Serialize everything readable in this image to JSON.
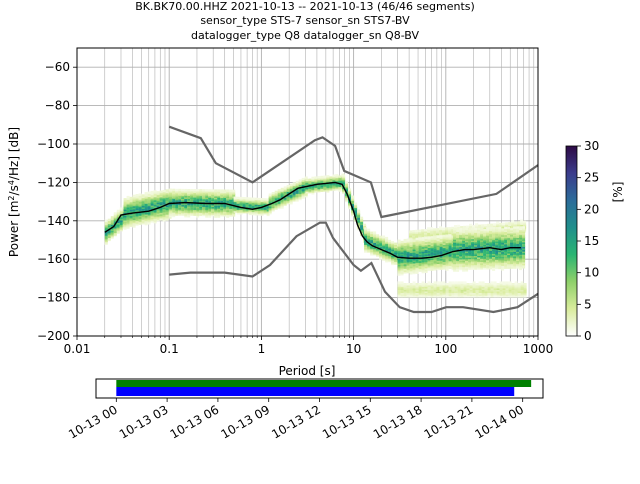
{
  "title": {
    "line1": "BK.BK70.00.HHZ   2021-10-13 -- 2021-10-13  (46/46 segments)",
    "line2": "sensor_type STS-7 sensor_sn STS7-BV",
    "line3": "datalogger_type Q8 datalogger_sn Q8-BV"
  },
  "chart_data": [
    {
      "type": "heatmap",
      "xscale": "log",
      "xlim": [
        0.01,
        1000
      ],
      "ylim": [
        -200,
        -50
      ],
      "xlabel": "Period [s]",
      "ylabel": "Power [m²/s⁴/Hz] [dB]",
      "x_ticks": [
        {
          "value": 0.01,
          "label": "0.01"
        },
        {
          "value": 0.1,
          "label": "0.1"
        },
        {
          "value": 1,
          "label": "1"
        },
        {
          "value": 10,
          "label": "10"
        },
        {
          "value": 100,
          "label": "100"
        },
        {
          "value": 1000,
          "label": "1000"
        }
      ],
      "y_ticks": [
        {
          "value": -60,
          "label": "−60"
        },
        {
          "value": -80,
          "label": "−80"
        },
        {
          "value": -100,
          "label": "−100"
        },
        {
          "value": -120,
          "label": "−120"
        },
        {
          "value": -140,
          "label": "−140"
        },
        {
          "value": -160,
          "label": "−160"
        },
        {
          "value": -180,
          "label": "−180"
        },
        {
          "value": -200,
          "label": "−200"
        }
      ],
      "grid": true,
      "colorbar": {
        "label": "[%]",
        "range": [
          0,
          30
        ],
        "ticks": [
          {
            "value": 0,
            "label": "0"
          },
          {
            "value": 5,
            "label": "5"
          },
          {
            "value": 10,
            "label": "10"
          },
          {
            "value": 15,
            "label": "15"
          },
          {
            "value": 20,
            "label": "20"
          },
          {
            "value": 25,
            "label": "25"
          },
          {
            "value": 30,
            "label": "30"
          }
        ],
        "colors": [
          "#ffffff",
          "#d9ec9c",
          "#8fd06a",
          "#2ab572",
          "#208f8c",
          "#2c6c9a",
          "#3b3c8c",
          "#2d0a45"
        ]
      },
      "noise_model_color": "#666666",
      "high_noise_model": [
        [
          0.1,
          -91
        ],
        [
          0.22,
          -97
        ],
        [
          0.32,
          -110
        ],
        [
          0.8,
          -120
        ],
        [
          3.8,
          -98
        ],
        [
          4.6,
          -96.5
        ],
        [
          6.3,
          -101
        ],
        [
          7.9,
          -114
        ],
        [
          15.4,
          -120
        ],
        [
          20,
          -138
        ],
        [
          354,
          -126
        ],
        [
          1000,
          -111
        ]
      ],
      "low_noise_model": [
        [
          0.1,
          -168
        ],
        [
          0.17,
          -167
        ],
        [
          0.4,
          -167
        ],
        [
          0.8,
          -169
        ],
        [
          1.24,
          -163
        ],
        [
          2.4,
          -148
        ],
        [
          4.3,
          -141
        ],
        [
          5.0,
          -141
        ],
        [
          6.0,
          -149
        ],
        [
          10,
          -163
        ],
        [
          12,
          -166
        ],
        [
          15.6,
          -162
        ],
        [
          21.9,
          -177
        ],
        [
          31.6,
          -185
        ],
        [
          45,
          -187.5
        ],
        [
          70,
          -187.5
        ],
        [
          101,
          -185
        ],
        [
          154,
          -185
        ],
        [
          328,
          -187.5
        ],
        [
          600,
          -185
        ],
        [
          1000,
          -178
        ]
      ],
      "mode_line_color": "#000000",
      "mode_line": [
        [
          0.02,
          -146
        ],
        [
          0.025,
          -143
        ],
        [
          0.03,
          -137
        ],
        [
          0.04,
          -136
        ],
        [
          0.06,
          -135
        ],
        [
          0.08,
          -133
        ],
        [
          0.1,
          -131
        ],
        [
          0.15,
          -130.5
        ],
        [
          0.25,
          -131
        ],
        [
          0.4,
          -131
        ],
        [
          0.6,
          -133
        ],
        [
          0.8,
          -134
        ],
        [
          1.0,
          -133
        ],
        [
          1.3,
          -131
        ],
        [
          1.6,
          -129
        ],
        [
          2.0,
          -126
        ],
        [
          2.5,
          -123
        ],
        [
          3.2,
          -122
        ],
        [
          4.0,
          -121
        ],
        [
          5.0,
          -120.5
        ],
        [
          6.3,
          -120
        ],
        [
          7.5,
          -121
        ],
        [
          8.5,
          -126
        ],
        [
          10,
          -135
        ],
        [
          11,
          -142
        ],
        [
          12.5,
          -148
        ],
        [
          14,
          -151
        ],
        [
          16,
          -153
        ],
        [
          20,
          -155
        ],
        [
          25,
          -157
        ],
        [
          30,
          -159
        ],
        [
          40,
          -159.5
        ],
        [
          55,
          -159.5
        ],
        [
          70,
          -159
        ],
        [
          90,
          -158
        ],
        [
          120,
          -156
        ],
        [
          160,
          -155
        ],
        [
          200,
          -155
        ],
        [
          300,
          -154
        ],
        [
          400,
          -155
        ],
        [
          500,
          -154
        ],
        [
          650,
          -154
        ]
      ],
      "psd_density_bands": [
        {
          "x_range": [
            0.02,
            0.032
          ],
          "center_start": -146,
          "center_end": -138,
          "spread": 6
        },
        {
          "x_range": [
            0.032,
            0.1
          ],
          "center_start": -136,
          "center_end": -131,
          "spread": 8
        },
        {
          "x_range": [
            0.1,
            0.5
          ],
          "center_start": -130.5,
          "center_end": -131,
          "spread": 7
        },
        {
          "x_range": [
            0.5,
            1.2
          ],
          "center_start": -132,
          "center_end": -133,
          "spread": 4
        },
        {
          "x_range": [
            1.2,
            3
          ],
          "center_start": -131,
          "center_end": -122,
          "spread": 5
        },
        {
          "x_range": [
            3,
            7.5
          ],
          "center_start": -122,
          "center_end": -120,
          "spread": 4
        },
        {
          "x_range": [
            7.5,
            13
          ],
          "center_start": -121,
          "center_end": -148,
          "spread": 5
        },
        {
          "x_range": [
            13,
            30
          ],
          "center_start": -150,
          "center_end": -158,
          "spread": 6
        },
        {
          "x_range": [
            30,
            120
          ],
          "center_start": -159,
          "center_end": -156,
          "spread": 9
        },
        {
          "x_range": [
            120,
            700
          ],
          "center_start": -155,
          "center_end": -154,
          "spread": 11
        }
      ],
      "psd_faint_cloud": [
        {
          "x_range": [
            30,
            700
          ],
          "center_start": -176,
          "center_end": -176,
          "spread": 5
        },
        {
          "x_range": [
            40,
            700
          ],
          "center_start": -148,
          "center_end": -143,
          "spread": 4
        }
      ]
    },
    {
      "type": "bar",
      "description_free": true,
      "x_ticks": [
        {
          "value": 0,
          "label": "10-13 00"
        },
        {
          "value": 3,
          "label": "10-13 03"
        },
        {
          "value": 6,
          "label": "10-13 06"
        },
        {
          "value": 9,
          "label": "10-13 09"
        },
        {
          "value": 12,
          "label": "10-13 12"
        },
        {
          "value": 15,
          "label": "10-13 15"
        },
        {
          "value": 18,
          "label": "10-13 18"
        },
        {
          "value": 21,
          "label": "10-13 21"
        },
        {
          "value": 24,
          "label": "10-14 00"
        }
      ],
      "xlim": [
        -1.2,
        25.2
      ],
      "data_coverage": {
        "start": 0,
        "end": 24.5,
        "color": "#008000"
      },
      "psd_coverage": {
        "start": 0,
        "end": 23.5,
        "color": "#0000ff"
      }
    }
  ]
}
